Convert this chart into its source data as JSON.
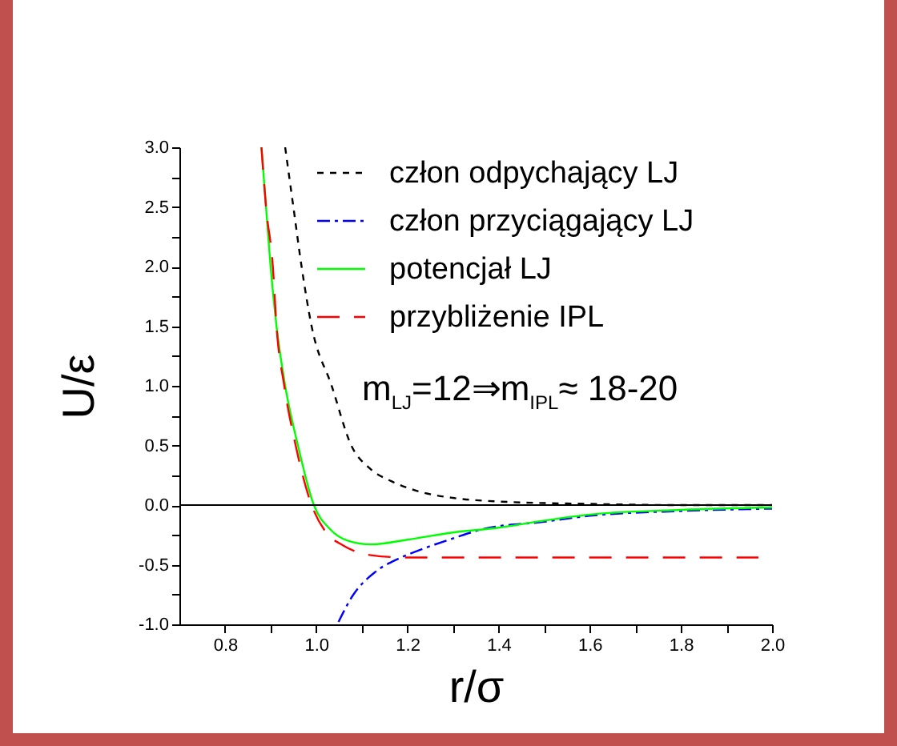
{
  "chart_data": {
    "type": "line",
    "xlabel": "r/σ",
    "ylabel": "U/ε",
    "annotations": [
      "m$_{LJ}$=12⇒m$_{IPL}$≈ 18-20"
    ],
    "xlim": [
      0.7,
      2.0
    ],
    "ylim": [
      -1.0,
      3.0
    ],
    "xticks": [
      {
        "value": 0.8,
        "label": "0.8"
      },
      {
        "value": 0.9,
        "label": null
      },
      {
        "value": 1.0,
        "label": "1.0"
      },
      {
        "value": 1.1,
        "label": null
      },
      {
        "value": 1.2,
        "label": "1.2"
      },
      {
        "value": 1.3,
        "label": null
      },
      {
        "value": 1.4,
        "label": "1.4"
      },
      {
        "value": 1.5,
        "label": null
      },
      {
        "value": 1.6,
        "label": "1.6"
      },
      {
        "value": 1.7,
        "label": null
      },
      {
        "value": 1.8,
        "label": "1.8"
      },
      {
        "value": 1.9,
        "label": null
      },
      {
        "value": 2.0,
        "label": "2.0"
      }
    ],
    "yticks": [
      {
        "value": -1.0,
        "label": "-1.0"
      },
      {
        "value": -0.75,
        "label": null
      },
      {
        "value": -0.5,
        "label": "-0.5"
      },
      {
        "value": -0.25,
        "label": null
      },
      {
        "value": 0,
        "label": "0.0"
      },
      {
        "value": 0.25,
        "label": null
      },
      {
        "value": 0.5,
        "label": "0.5"
      },
      {
        "value": 0.75,
        "label": null
      },
      {
        "value": 1.0,
        "label": "1.0"
      },
      {
        "value": 1.25,
        "label": null
      },
      {
        "value": 1.5,
        "label": "1.5"
      },
      {
        "value": 1.75,
        "label": null
      },
      {
        "value": 2.0,
        "label": "2.0"
      },
      {
        "value": 2.25,
        "label": null
      },
      {
        "value": 2.5,
        "label": "2.5"
      },
      {
        "value": 2.75,
        "label": null
      },
      {
        "value": 3.0,
        "label": "3.0"
      }
    ],
    "grid": false,
    "legend": "top right",
    "ref_lines": [
      {
        "axis": "y",
        "value": 0,
        "color": "#000000"
      }
    ],
    "series": [
      {
        "name": "człon odpychający LJ",
        "color": "#000000",
        "line_style": "dashed",
        "x": [
          0.932,
          0.95,
          0.968,
          0.99,
          1.034,
          1.077,
          1.12,
          1.165,
          1.22,
          1.3,
          1.4,
          1.6,
          1.8,
          2.0
        ],
        "values": [
          3.0,
          2.5,
          2.0,
          1.5,
          1.0,
          0.5,
          0.3,
          0.2,
          0.12,
          0.06,
          0.03,
          0.01,
          0.0,
          0.0
        ]
      },
      {
        "name": "człon przyciągający LJ",
        "color": "#0000ff",
        "line_style": "dashdot",
        "x": [
          1.049,
          1.08,
          1.13,
          1.18,
          1.225,
          1.3,
          1.367,
          1.5,
          1.6,
          1.8,
          2.0
        ],
        "values": [
          -0.98,
          -0.76,
          -0.56,
          -0.45,
          -0.38,
          -0.28,
          -0.2,
          -0.14,
          -0.09,
          -0.05,
          -0.03
        ]
      },
      {
        "name": "potencjał LJ",
        "color": "#00ff00",
        "line_style": "solid",
        "x": [
          0.88,
          0.89,
          0.9,
          0.913,
          0.932,
          0.96,
          0.995,
          1.03,
          1.07,
          1.12,
          1.2,
          1.3,
          1.4,
          1.5,
          1.6,
          1.8,
          2.0
        ],
        "values": [
          3.0,
          2.5,
          2.0,
          1.5,
          1.0,
          0.5,
          0.0,
          -0.2,
          -0.3,
          -0.33,
          -0.29,
          -0.23,
          -0.19,
          -0.13,
          -0.08,
          -0.04,
          -0.02
        ]
      },
      {
        "name": "przybliżenie IPL",
        "color": "#ff0000",
        "line_style": "dashed",
        "x": [
          0.88,
          0.89,
          0.905,
          0.913,
          0.93,
          0.955,
          0.99,
          1.02,
          1.06,
          1.12,
          1.2,
          1.97
        ],
        "values": [
          3.0,
          2.5,
          2.0,
          1.5,
          1.0,
          0.5,
          0.0,
          -0.22,
          -0.34,
          -0.42,
          -0.44,
          -0.44
        ]
      }
    ]
  }
}
